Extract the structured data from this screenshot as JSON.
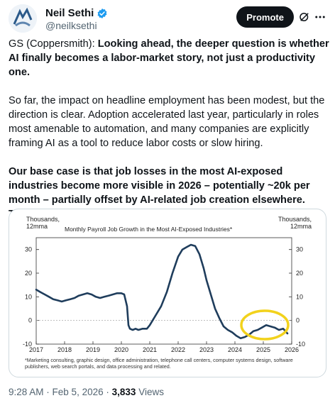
{
  "post": {
    "author_name": "Neil Sethi",
    "author_handle": "@neilksethi",
    "promote_label": "Promote",
    "paragraphs": [
      {
        "plain": "GS (Coppersmith): ",
        "bold": "Looking ahead, the deeper question is whether AI finally becomes a labor-market story, not just a productivity one."
      },
      {
        "plain": "So far, the impact on headline employment has been modest, but the direction is clear. Adoption accelerated last year, particularly in roles most amenable to automation, and many companies are explicitly framing AI as a tool to reduce labor costs or slow hiring.",
        "bold": ""
      },
      {
        "plain": "",
        "bold": "Our base case is that job losses in the most AI-exposed industries become more visible in 2026 – potentially ~20k per month – partially offset by AI-related job creation elsewhere. That uncertainty around labor remains, in our view, one of the least well-priced macro risks."
      }
    ],
    "time": "9:28 AM",
    "date": "Feb 5, 2026",
    "views_count": "3,833",
    "views_label": "Views"
  },
  "chart_data": {
    "type": "line",
    "title": "Monthly Payroll Job Growth in the Most AI-Exposed Industries*",
    "ylabel_left": "Thousands,\n12mma",
    "ylabel_right": "Thousands,\n12mma",
    "x_ticks": [
      "2017",
      "2018",
      "2019",
      "2020",
      "2021",
      "2022",
      "2023",
      "2024",
      "2025",
      "2026"
    ],
    "y_ticks": [
      -10,
      0,
      10,
      20,
      30
    ],
    "xlim": [
      2017,
      2026
    ],
    "ylim": [
      -10,
      35
    ],
    "line_color": "#1f3d5c",
    "highlight_color": "#f2d21c",
    "footnote": "*Marketing consulting, graphic design, office administration, telephone call centers, computer systems design, software publishers, web search portals, and data processing and related.",
    "series": [
      {
        "x": [
          2017.0,
          2017.15,
          2017.3,
          2017.45,
          2017.6,
          2017.75,
          2017.9,
          2018.05,
          2018.2,
          2018.35,
          2018.5,
          2018.65,
          2018.8,
          2018.95,
          2019.1,
          2019.25,
          2019.4,
          2019.55,
          2019.7,
          2019.85,
          2020.0,
          2020.1,
          2020.2,
          2020.25,
          2020.3,
          2020.4,
          2020.5,
          2020.6,
          2020.75,
          2020.9,
          2021.0,
          2021.2,
          2021.4,
          2021.6,
          2021.8,
          2022.0,
          2022.15,
          2022.3,
          2022.45,
          2022.6,
          2022.75,
          2022.9,
          2023.0,
          2023.15,
          2023.3,
          2023.45,
          2023.6,
          2023.75,
          2023.9,
          2024.05,
          2024.2,
          2024.35,
          2024.5,
          2024.65,
          2024.8,
          2024.95,
          2025.1,
          2025.25,
          2025.4,
          2025.55,
          2025.7,
          2025.85
        ],
        "y": [
          13,
          12,
          11,
          10,
          9,
          8.5,
          8,
          8.5,
          9,
          9.5,
          10.5,
          11,
          11.5,
          11,
          10,
          9.5,
          10,
          10.5,
          11,
          11.5,
          11.5,
          11,
          6,
          -2,
          -3.5,
          -4,
          -3.5,
          -4,
          -3.5,
          -3.5,
          -2,
          2,
          6,
          12,
          20,
          27,
          30,
          31,
          32,
          31.5,
          28,
          22,
          17,
          11,
          5,
          1,
          -2.5,
          -4,
          -5,
          -6.5,
          -7.5,
          -7,
          -6,
          -4.5,
          -4,
          -3,
          -2,
          -2.5,
          -3,
          -4,
          -3.5,
          -5.5
        ]
      }
    ]
  }
}
